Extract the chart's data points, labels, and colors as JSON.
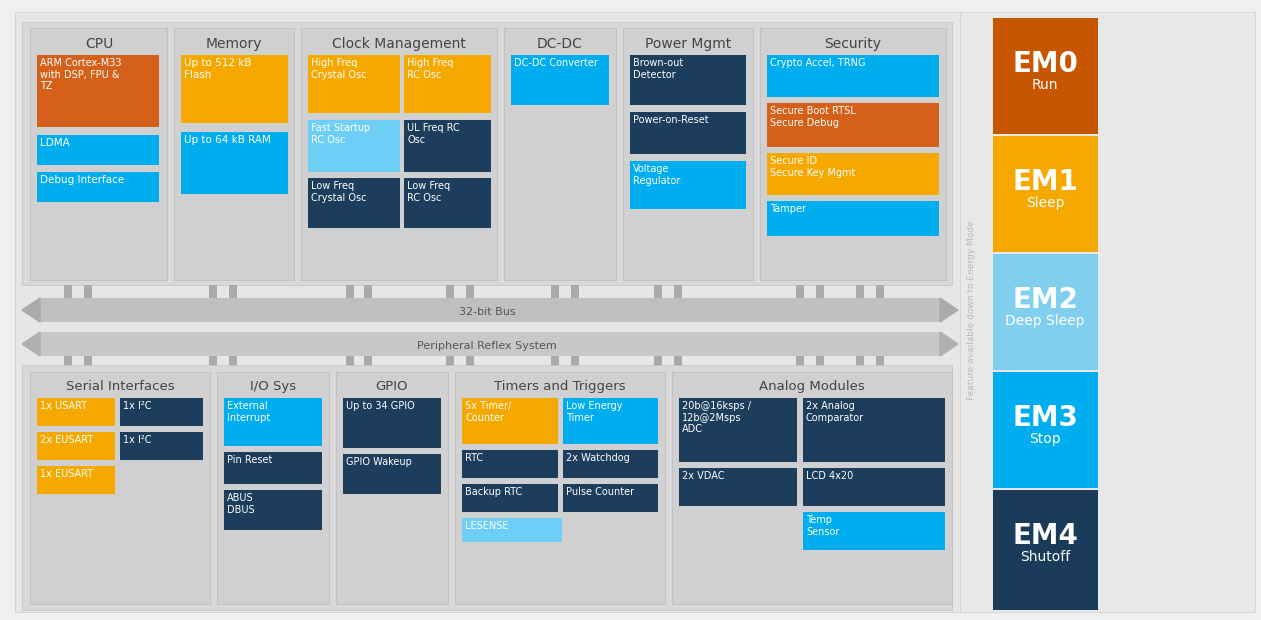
{
  "bg": "#EFEFEF",
  "main_area": "#E5E5E5",
  "panel_color": "#DADADA",
  "colors": {
    "orange": "#D4601A",
    "amber": "#F5A800",
    "cyan": "#00AEEF",
    "light_cyan": "#6DCFF6",
    "dark_navy": "#1C3D5C",
    "em0": "#C85500",
    "em1": "#F5A800",
    "em2": "#80CFEE",
    "em3": "#00AEEF",
    "em4": "#1A3C5A"
  },
  "em_modes": [
    {
      "label": "EM0",
      "sub": "Run",
      "color": "#C85500"
    },
    {
      "label": "EM1",
      "sub": "Sleep",
      "color": "#F5A800"
    },
    {
      "label": "EM2",
      "sub": "Deep Sleep",
      "color": "#80CFEE"
    },
    {
      "label": "EM3",
      "sub": "Stop",
      "color": "#00AEEF"
    },
    {
      "label": "EM4",
      "sub": "Shutoff",
      "color": "#1A3C5A"
    }
  ]
}
